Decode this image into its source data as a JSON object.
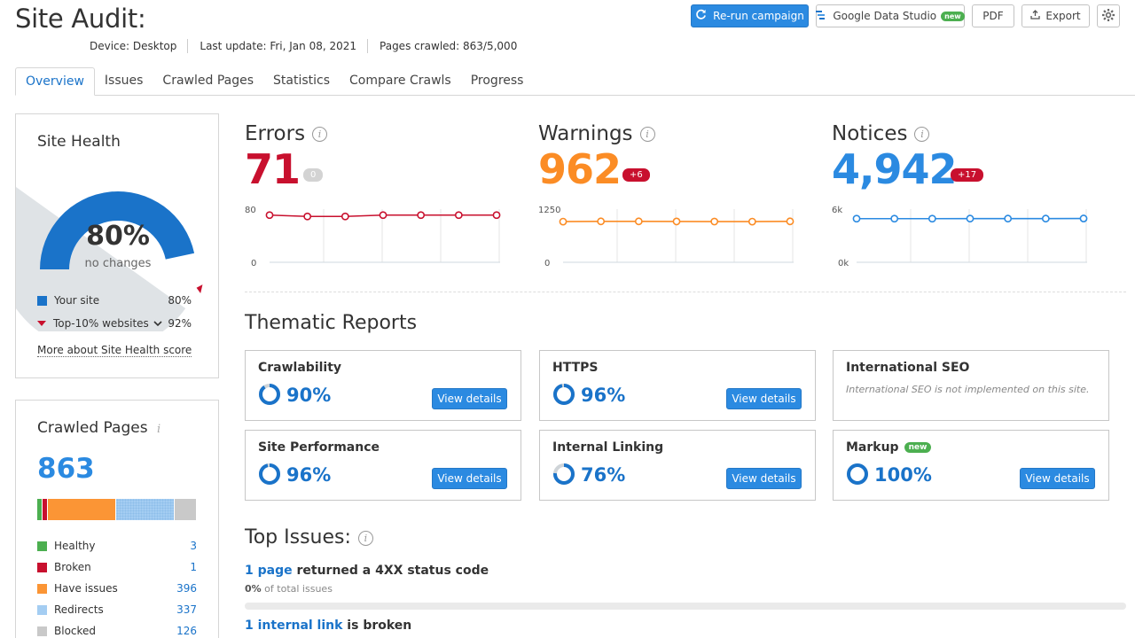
{
  "header": {
    "title": "Site Audit:",
    "meta": [
      "Device: Desktop",
      "Last update: Fri, Jan 08, 2021",
      "Pages crawled: 863/5,000"
    ],
    "rerun_label": "Re-run campaign",
    "gds_label": "Google Data Studio",
    "gds_badge": "new",
    "pdf_label": "PDF",
    "export_label": "Export"
  },
  "tabs": [
    "Overview",
    "Issues",
    "Crawled Pages",
    "Statistics",
    "Compare Crawls",
    "Progress"
  ],
  "site_health": {
    "title": "Site Health",
    "score": "80%",
    "score_value": 80,
    "top10_value": 92,
    "change_text": "no changes",
    "your_site_label": "Your site",
    "your_site_value": "80%",
    "top10_label": "Top-10% websites",
    "top10_display": "92%",
    "more_link": "More about Site Health score",
    "colors": {
      "your_site": "#1a73c9",
      "remaining": "#dfe3e6",
      "top10_marker": "#c8102e"
    }
  },
  "crawled_pages": {
    "title": "Crawled Pages",
    "count": "863",
    "rows": [
      {
        "label": "Healthy",
        "value": "3",
        "color": "#4caf50"
      },
      {
        "label": "Broken",
        "value": "1",
        "color": "#c8102e"
      },
      {
        "label": "Have issues",
        "value": "396",
        "color": "#fb9535"
      },
      {
        "label": "Redirects",
        "value": "337",
        "color": "#a4cdf2"
      },
      {
        "label": "Blocked",
        "value": "126",
        "color": "#c9c9c9"
      }
    ]
  },
  "metrics": [
    {
      "label": "Errors",
      "value": "71",
      "delta": "0",
      "delta_style": "zero",
      "color": "#c8102e",
      "y_top": "80",
      "y_bottom": "0",
      "ymax": 80,
      "points": [
        71,
        69,
        69,
        71,
        71,
        71,
        71
      ]
    },
    {
      "label": "Warnings",
      "value": "962",
      "delta": "+6",
      "delta_style": "red",
      "color": "#fb8c25",
      "y_top": "1250",
      "y_bottom": "0",
      "ymax": 1250,
      "points": [
        956,
        962,
        962,
        960,
        958,
        956,
        962
      ]
    },
    {
      "label": "Notices",
      "value": "4,942",
      "delta": "+17",
      "delta_style": "red",
      "color": "#2b8ae1",
      "y_top": "6k",
      "y_bottom": "0k",
      "ymax": 6000,
      "points": [
        4925,
        4925,
        4925,
        4930,
        4930,
        4930,
        4942
      ]
    }
  ],
  "thematic": {
    "title": "Thematic Reports",
    "view_label": "View details",
    "reports": [
      {
        "name": "Crawlability",
        "pct": "90%",
        "value": 90,
        "badge": ""
      },
      {
        "name": "HTTPS",
        "pct": "96%",
        "value": 96,
        "badge": ""
      },
      {
        "name": "International SEO",
        "pct": "",
        "value": 0,
        "note": "International SEO is not implemented on this site.",
        "badge": ""
      },
      {
        "name": "Site Performance",
        "pct": "96%",
        "value": 96,
        "badge": ""
      },
      {
        "name": "Internal Linking",
        "pct": "76%",
        "value": 76,
        "badge": ""
      },
      {
        "name": "Markup",
        "pct": "100%",
        "value": 100,
        "badge": "new"
      }
    ]
  },
  "top_issues": {
    "title": "Top Issues:",
    "issues": [
      {
        "link": "1 page",
        "rest": " returned a 4XX status code",
        "pct": "0%",
        "sub": " of total issues"
      },
      {
        "link": "1 internal link",
        "rest": " is broken"
      }
    ]
  }
}
